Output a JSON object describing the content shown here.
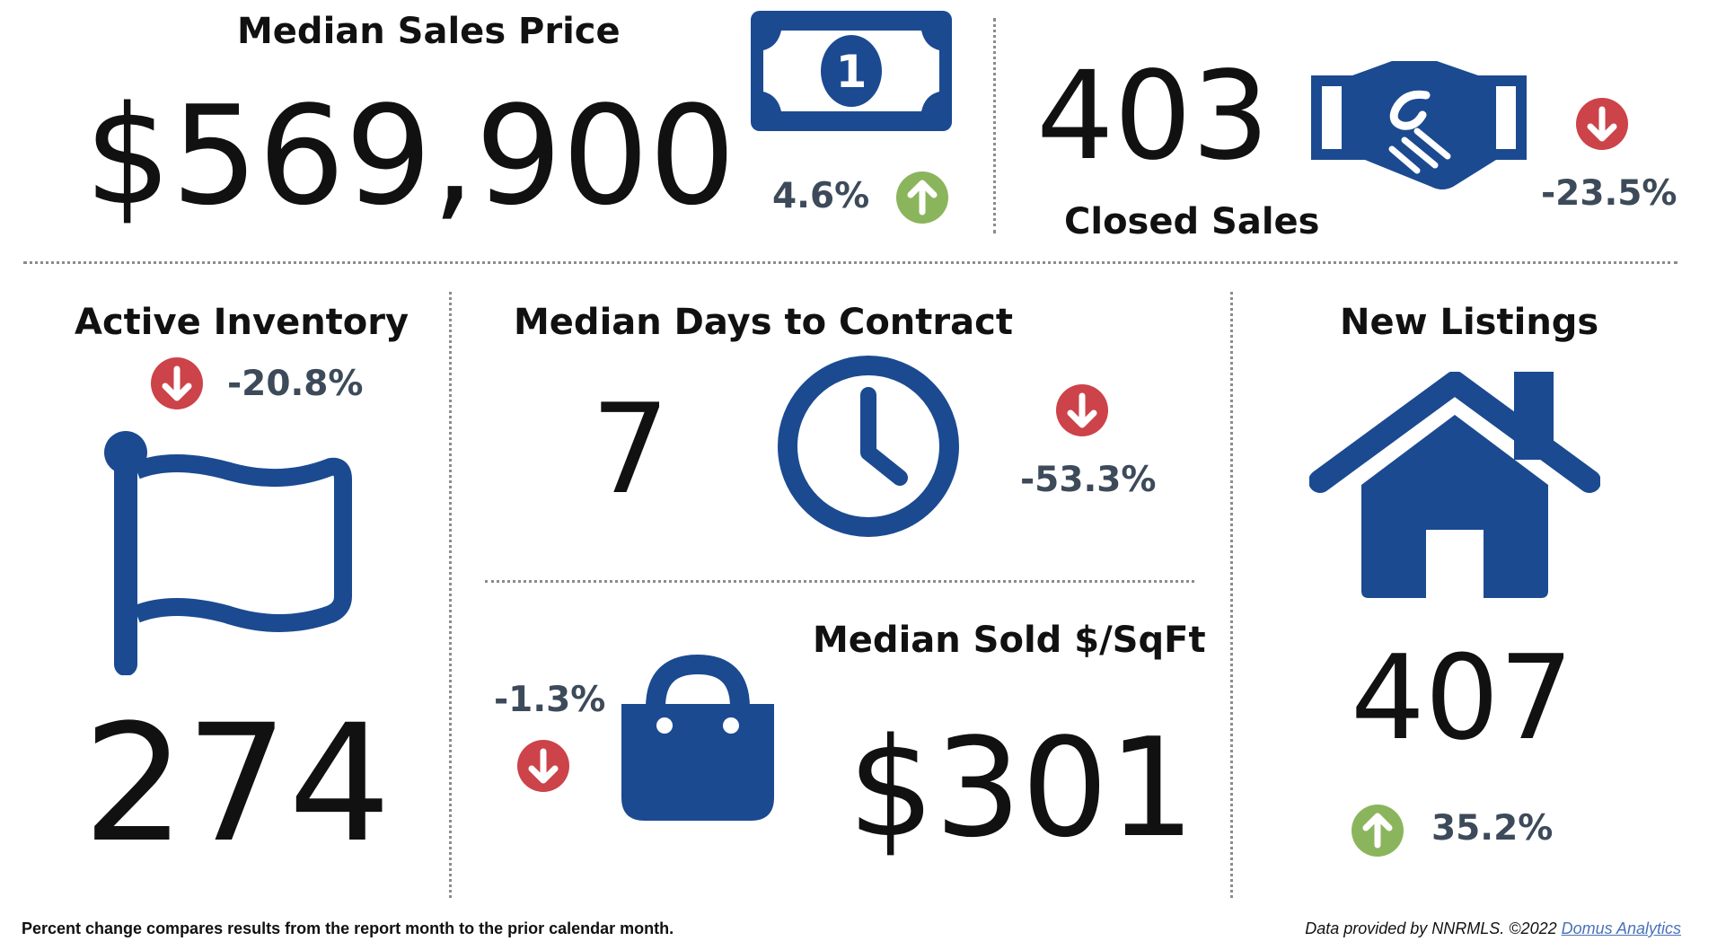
{
  "colors": {
    "icon_blue": "#1b4a91",
    "up_green": "#8bb55c",
    "down_red": "#cc434a",
    "pct_text": "#3d4a5a"
  },
  "median_sales_price": {
    "title": "Median Sales Price",
    "value": "$569,900",
    "change": "4.6%",
    "direction": "up",
    "icon": "dollar-bill-icon",
    "bill_digit": "1"
  },
  "closed_sales": {
    "title": "Closed Sales",
    "value": "403",
    "change": "-23.5%",
    "direction": "down",
    "icon": "handshake-icon"
  },
  "active_inventory": {
    "title": "Active Inventory",
    "value": "274",
    "change": "-20.8%",
    "direction": "down",
    "icon": "flag-icon"
  },
  "median_days_to_contract": {
    "title": "Median Days to Contract",
    "value": "7",
    "change": "-53.3%",
    "direction": "down",
    "icon": "clock-icon"
  },
  "median_sold_per_sqft": {
    "title": "Median Sold $/SqFt",
    "value": "$301",
    "change": "-1.3%",
    "direction": "down",
    "icon": "shopping-bag-icon"
  },
  "new_listings": {
    "title": "New Listings",
    "value": "407",
    "change": "35.2%",
    "direction": "up",
    "icon": "house-icon"
  },
  "footer": {
    "note": "Percent change compares results from the report month to the prior calendar month.",
    "credit": "Data provided by NNRMLS. ©2022",
    "link": "Domus Analytics"
  }
}
